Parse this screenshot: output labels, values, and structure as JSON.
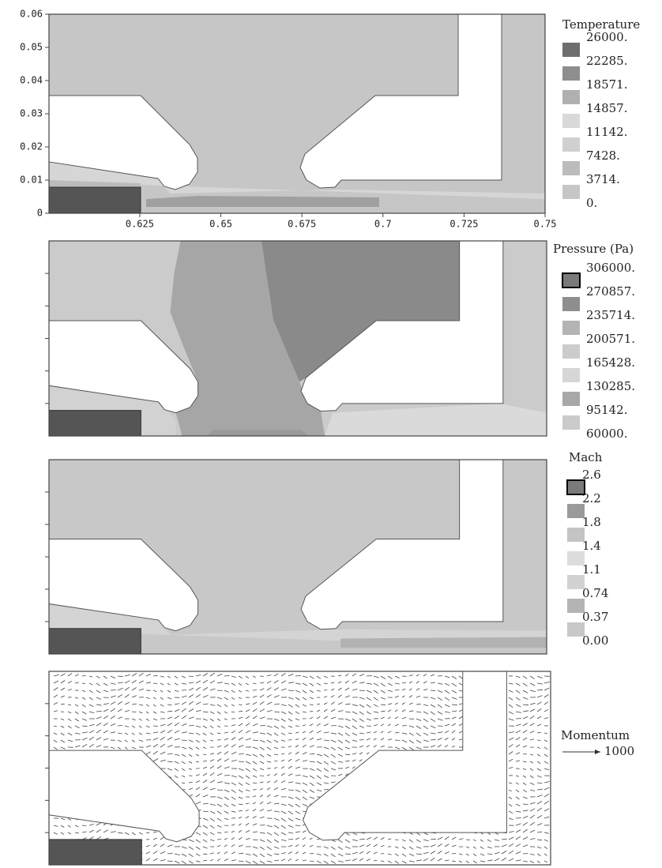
{
  "chart_data": [
    {
      "type": "contour",
      "legend_title": "Temperature",
      "levels": [
        {
          "value": 26000,
          "label": "26000."
        },
        {
          "value": 22285,
          "label": "22285."
        },
        {
          "value": 18571,
          "label": "18571."
        },
        {
          "value": 14857,
          "label": "14857."
        },
        {
          "value": 11142,
          "label": "11142."
        },
        {
          "value": 7428,
          "label": "7428."
        },
        {
          "value": 3714,
          "label": "3714."
        },
        {
          "value": 0,
          "label": "0."
        }
      ],
      "colors": [
        "#6e6e6e",
        "#8e8e8e",
        "#b0b0b0",
        "#d9d9d9",
        "#d0d0d0",
        "#bcbcbc",
        "#c6c6c6"
      ],
      "xlim": [
        0.597,
        0.75
      ],
      "xticks": [
        0.625,
        0.65,
        0.675,
        0.7,
        0.725,
        0.75
      ],
      "ylim": [
        0,
        0.06
      ],
      "yticks": [
        0,
        0.01,
        0.02,
        0.03,
        0.04,
        0.05,
        0.06
      ]
    },
    {
      "type": "contour",
      "legend_title": "Pressure (Pa)",
      "levels": [
        {
          "value": 306000,
          "label": "306000."
        },
        {
          "value": 270857,
          "label": "270857."
        },
        {
          "value": 235714,
          "label": "235714."
        },
        {
          "value": 200571,
          "label": "200571."
        },
        {
          "value": 165428,
          "label": "165428."
        },
        {
          "value": 130285,
          "label": "130285."
        },
        {
          "value": 95142,
          "label": "95142."
        },
        {
          "value": 60000,
          "label": "60000."
        }
      ],
      "colors": [
        "#7a7a7a",
        "#8e8e8e",
        "#b4b4b4",
        "#cccccc",
        "#d6d6d6",
        "#a8a8a8",
        "#cbcbcb"
      ]
    },
    {
      "type": "contour",
      "legend_title": "Mach",
      "levels": [
        2.6,
        2.2,
        1.8,
        1.4,
        1.1,
        0.74,
        0.37,
        {
          "value": 0,
          "label": "0.00"
        }
      ],
      "colors": [
        "#7a7a7a",
        "#9a9a9a",
        "#c4c4c4",
        "#dcdcdc",
        "#d2d2d2",
        "#b4b4b4",
        "#c8c8c8"
      ]
    },
    {
      "type": "vector",
      "legend_title": "Momentum",
      "reference": 1000
    }
  ]
}
